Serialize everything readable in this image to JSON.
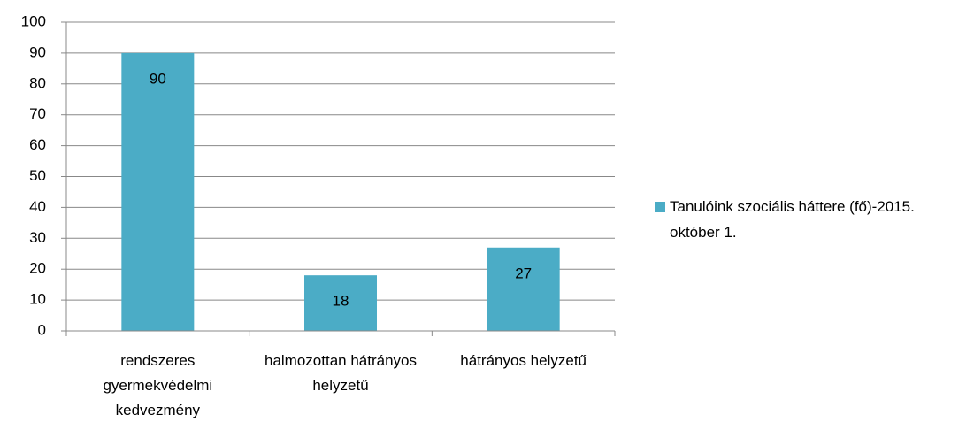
{
  "chart_data": {
    "type": "bar",
    "categories": [
      "rendszeres gyermekvédelmi kedvezmény",
      "halmozottan hátrányos helyzetű",
      "hátrányos helyzetű"
    ],
    "series": [
      {
        "name": "Tanulóink szociális háttere (fő)-2015. október 1.",
        "color": "#4bacc6",
        "values": [
          90,
          18,
          27
        ]
      }
    ],
    "ylim": [
      0,
      100
    ],
    "yticks": [
      0,
      10,
      20,
      30,
      40,
      50,
      60,
      70,
      80,
      90,
      100
    ],
    "grid": true,
    "legend": "right"
  }
}
